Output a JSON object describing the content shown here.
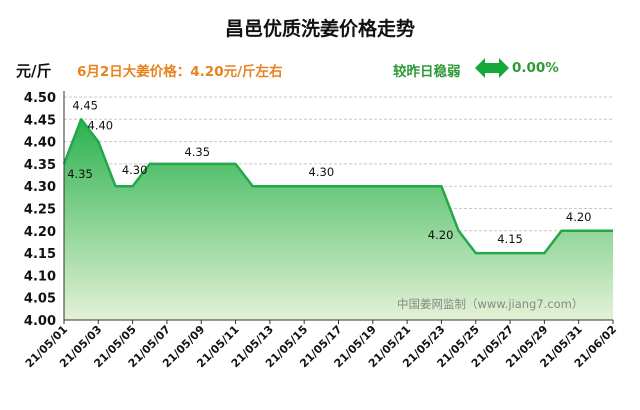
{
  "header": {
    "title": "昌邑优质洗姜价格走势",
    "unit": "元/斤",
    "price_note": "6月2日大姜价格：4.20元/斤左右",
    "change_label": "较昨日稳弱",
    "change_value": "0.00%"
  },
  "watermark": "中国姜网监制（www.jiang7.com）",
  "colors": {
    "line": "#22a84a",
    "fill_top": "#2bb24f",
    "fill_bottom": "#e4f2d6",
    "accent_orange": "#e8811f",
    "accent_green": "#2e9a36",
    "arrow": "#17a83c"
  },
  "chart_data": {
    "type": "area",
    "title": "昌邑优质洗姜价格走势",
    "ylabel": "元/斤",
    "ylim": [
      4.0,
      4.5
    ],
    "yticks": [
      "4.00",
      "4.05",
      "4.10",
      "4.15",
      "4.20",
      "4.25",
      "4.30",
      "4.35",
      "4.40",
      "4.45",
      "4.50"
    ],
    "grid": true,
    "x": [
      "21/05/01",
      "21/05/02",
      "21/05/03",
      "21/05/04",
      "21/05/05",
      "21/05/06",
      "21/05/07",
      "21/05/08",
      "21/05/09",
      "21/05/10",
      "21/05/11",
      "21/05/12",
      "21/05/13",
      "21/05/14",
      "21/05/15",
      "21/05/16",
      "21/05/17",
      "21/05/18",
      "21/05/19",
      "21/05/20",
      "21/05/21",
      "21/05/22",
      "21/05/23",
      "21/05/24",
      "21/05/25",
      "21/05/26",
      "21/05/27",
      "21/05/28",
      "21/05/29",
      "21/05/30",
      "21/05/31",
      "21/06/01",
      "21/06/02"
    ],
    "xtick_labels": [
      "21/05/01",
      "21/05/03",
      "21/05/05",
      "21/05/07",
      "21/05/09",
      "21/05/11",
      "21/05/13",
      "21/05/15",
      "21/05/17",
      "21/05/19",
      "21/05/21",
      "21/05/23",
      "21/05/25",
      "21/05/27",
      "21/05/29",
      "21/05/31",
      "21/06/02"
    ],
    "values": [
      4.35,
      4.45,
      4.4,
      4.3,
      4.3,
      4.35,
      4.35,
      4.35,
      4.35,
      4.35,
      4.35,
      4.3,
      4.3,
      4.3,
      4.3,
      4.3,
      4.3,
      4.3,
      4.3,
      4.3,
      4.3,
      4.3,
      4.3,
      4.2,
      4.15,
      4.15,
      4.15,
      4.15,
      4.15,
      4.2,
      4.2,
      4.2,
      4.2
    ],
    "data_labels": [
      {
        "index": 0,
        "text": "4.35"
      },
      {
        "index": 1,
        "text": "4.45"
      },
      {
        "index": 2,
        "text": "4.40"
      },
      {
        "index": 4,
        "text": "4.30"
      },
      {
        "index": 8,
        "text": "4.35"
      },
      {
        "index": 15,
        "text": "4.30"
      },
      {
        "index": 23,
        "text": "4.20"
      },
      {
        "index": 26,
        "text": "4.15"
      },
      {
        "index": 30,
        "text": "4.20"
      }
    ]
  }
}
